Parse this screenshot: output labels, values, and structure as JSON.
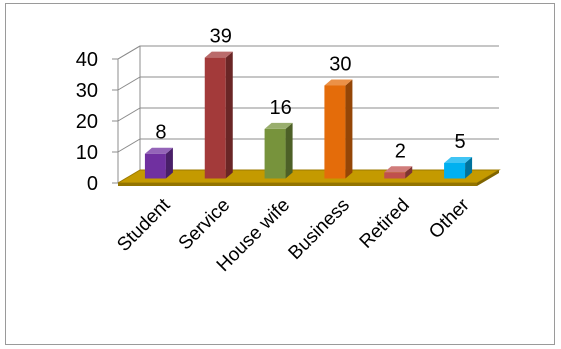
{
  "chart_data": {
    "type": "bar",
    "style": "3d-column",
    "categories": [
      "Student",
      "Service",
      "House wife",
      "Business",
      "Retired",
      "Other"
    ],
    "values": [
      8,
      39,
      16,
      30,
      2,
      5
    ],
    "data_labels": [
      "8",
      "39",
      "16",
      "30",
      "2",
      "5"
    ],
    "y_ticks": [
      "0",
      "10",
      "20",
      "30",
      "40"
    ],
    "ylim": [
      0,
      40
    ],
    "grid": true,
    "legend": "none",
    "floor_color": "#C49A00",
    "bar_colors": [
      "#7030A0",
      "#A33A3A",
      "#77933C",
      "#E46C0A",
      "#C0504D",
      "#00B0F0"
    ]
  }
}
